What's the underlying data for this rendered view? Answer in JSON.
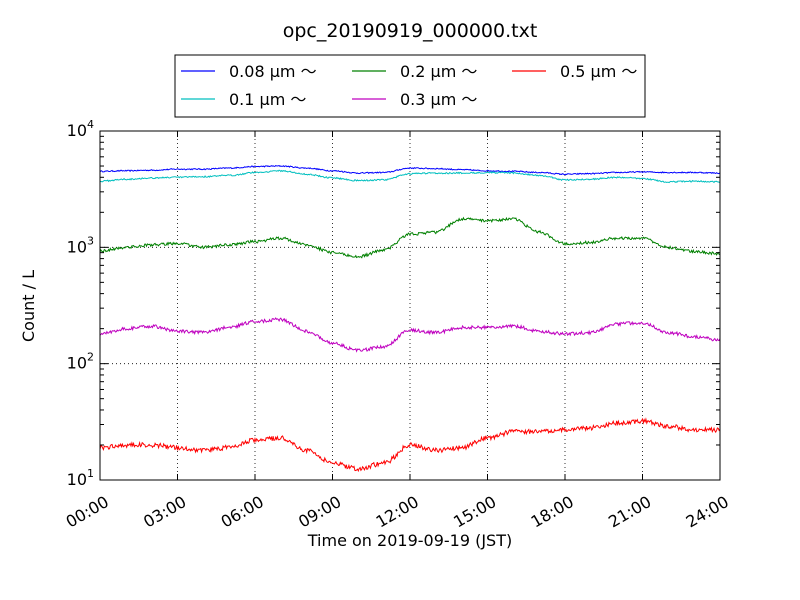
{
  "chart_data": {
    "type": "line",
    "title": "opc_20190919_000000.txt",
    "xlabel": "Time on 2019-09-19 (JST)",
    "ylabel": "Count / L",
    "yscale": "log",
    "ylim": [
      10,
      10000
    ],
    "xlim": [
      "2019-09-19 00:00",
      "2019-09-20 00:00"
    ],
    "grid": true,
    "legend_position": "top, above plot",
    "x_ticks": [
      "00:00",
      "03:00",
      "06:00",
      "09:00",
      "12:00",
      "15:00",
      "18:00",
      "21:00",
      "24:00"
    ],
    "y_ticks": [
      {
        "base": "10",
        "exp": "1"
      },
      {
        "base": "10",
        "exp": "2"
      },
      {
        "base": "10",
        "exp": "3"
      },
      {
        "base": "10",
        "exp": "4"
      }
    ],
    "series": [
      {
        "name": "0.08 μm ～",
        "color": "#0000ff",
        "x": [
          "00:00",
          "01:00",
          "02:00",
          "03:00",
          "04:00",
          "05:00",
          "06:00",
          "07:00",
          "08:00",
          "09:00",
          "10:00",
          "11:00",
          "12:00",
          "13:00",
          "14:00",
          "15:00",
          "16:00",
          "17:00",
          "18:00",
          "19:00",
          "20:00",
          "21:00",
          "22:00",
          "23:00",
          "24:00"
        ],
        "y": [
          4500,
          4550,
          4600,
          4700,
          4700,
          4800,
          4950,
          5000,
          4800,
          4550,
          4350,
          4400,
          4800,
          4750,
          4650,
          4550,
          4500,
          4400,
          4250,
          4300,
          4400,
          4450,
          4400,
          4400,
          4350
        ]
      },
      {
        "name": "0.1 μm ～",
        "color": "#00bfbf",
        "x": [
          "00:00",
          "01:00",
          "02:00",
          "03:00",
          "04:00",
          "05:00",
          "06:00",
          "07:00",
          "08:00",
          "09:00",
          "10:00",
          "11:00",
          "12:00",
          "13:00",
          "14:00",
          "15:00",
          "16:00",
          "17:00",
          "18:00",
          "19:00",
          "20:00",
          "21:00",
          "22:00",
          "23:00",
          "24:00"
        ],
        "y": [
          3700,
          3850,
          3950,
          4000,
          4050,
          4150,
          4400,
          4550,
          4250,
          3950,
          3750,
          3800,
          4300,
          4350,
          4350,
          4400,
          4350,
          4150,
          3800,
          3850,
          4000,
          3900,
          3650,
          3700,
          3650
        ]
      },
      {
        "name": "0.2 μm ～",
        "color": "#008000",
        "x": [
          "00:00",
          "01:00",
          "02:00",
          "03:00",
          "04:00",
          "05:00",
          "06:00",
          "07:00",
          "08:00",
          "09:00",
          "10:00",
          "11:00",
          "12:00",
          "13:00",
          "14:00",
          "15:00",
          "16:00",
          "17:00",
          "18:00",
          "19:00",
          "20:00",
          "21:00",
          "22:00",
          "23:00",
          "24:00"
        ],
        "y": [
          930,
          1000,
          1050,
          1080,
          1000,
          1050,
          1120,
          1200,
          1050,
          900,
          830,
          950,
          1300,
          1350,
          1750,
          1700,
          1750,
          1350,
          1080,
          1100,
          1200,
          1200,
          1000,
          920,
          880
        ]
      },
      {
        "name": "0.3 μm ～",
        "color": "#bf00bf",
        "x": [
          "00:00",
          "01:00",
          "02:00",
          "03:00",
          "04:00",
          "05:00",
          "06:00",
          "07:00",
          "08:00",
          "09:00",
          "10:00",
          "11:00",
          "12:00",
          "13:00",
          "14:00",
          "15:00",
          "16:00",
          "17:00",
          "18:00",
          "19:00",
          "20:00",
          "21:00",
          "22:00",
          "23:00",
          "24:00"
        ],
        "y": [
          180,
          200,
          210,
          190,
          185,
          205,
          230,
          240,
          190,
          150,
          130,
          140,
          195,
          185,
          205,
          205,
          210,
          190,
          180,
          185,
          220,
          225,
          185,
          170,
          160
        ]
      },
      {
        "name": "0.5 μm ～",
        "color": "#ff0000",
        "x": [
          "00:00",
          "01:00",
          "02:00",
          "03:00",
          "04:00",
          "05:00",
          "06:00",
          "07:00",
          "08:00",
          "09:00",
          "10:00",
          "11:00",
          "12:00",
          "13:00",
          "14:00",
          "15:00",
          "16:00",
          "17:00",
          "18:00",
          "19:00",
          "20:00",
          "21:00",
          "22:00",
          "23:00",
          "24:00"
        ],
        "y": [
          19,
          20,
          20,
          19,
          18,
          19,
          22,
          23,
          18,
          14,
          12.5,
          14,
          20,
          18,
          19,
          23,
          26,
          26,
          27,
          28,
          31,
          32,
          29,
          27,
          27
        ]
      }
    ]
  }
}
